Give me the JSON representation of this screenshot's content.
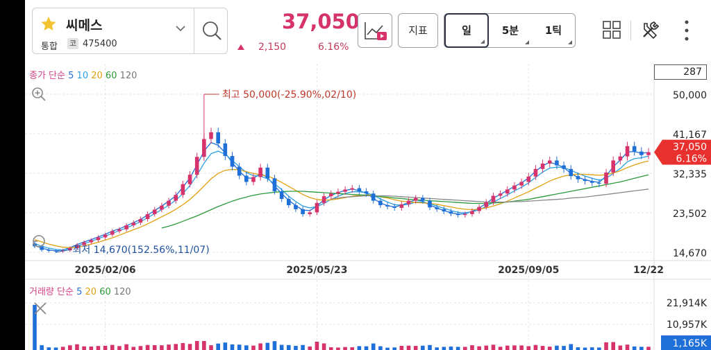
{
  "header": {
    "stock_name": "씨메스",
    "market": "통합",
    "code_badge": "코",
    "code": "475400",
    "price": "37,050",
    "change": "2,150",
    "change_pct": "6.16%",
    "indicator_label": "지표",
    "periods": [
      "일",
      "5분",
      "1틱"
    ],
    "colors": {
      "up": "#d6336c",
      "down": "#1f6fd9",
      "accent": "#2d3142"
    }
  },
  "chart_data": [
    {
      "type": "candlestick",
      "title": "",
      "legend": {
        "title": "종가 단순",
        "ma_periods": [
          "5",
          "10",
          "20",
          "60",
          "120"
        ]
      },
      "y_ticks": [
        "50,000",
        "41,167",
        "32,335",
        "23,502",
        "14,670"
      ],
      "ylim": [
        14670,
        50000
      ],
      "x_ticks": [
        "2025/02/06",
        "2025/05/23",
        "2025/09/05",
        "12/22"
      ],
      "count": "287",
      "current_price": "37,050",
      "current_pct": "6.16%",
      "annotations": {
        "high": "최고 50,000(-25.90%,02/10)",
        "low": "최저 14,670(152.56%,11/07)"
      },
      "close_series": [
        16000,
        15200,
        15000,
        14900,
        15100,
        15600,
        16300,
        16900,
        17400,
        18000,
        18600,
        19400,
        19800,
        20700,
        21300,
        22100,
        23200,
        24200,
        25100,
        26200,
        27500,
        29900,
        32000,
        36000,
        40000,
        41500,
        39000,
        36200,
        33800,
        31800,
        30400,
        31500,
        33600,
        31200,
        28300,
        26600,
        25200,
        24300,
        23200,
        23600,
        25700,
        27200,
        27800,
        28200,
        28700,
        29000,
        28300,
        27800,
        26200,
        25200,
        24900,
        24600,
        25400,
        26200,
        26800,
        26200,
        24700,
        24300,
        23800,
        23300,
        23000,
        23200,
        23900,
        24800,
        25900,
        27300,
        27800,
        28700,
        29600,
        30400,
        31600,
        33300,
        34500,
        35200,
        34100,
        33300,
        31700,
        31000,
        30600,
        30200,
        30000,
        32500,
        35200,
        36100,
        38400,
        37200,
        36400,
        37050
      ],
      "ma_series": [
        {
          "name": "5",
          "values": [
            16200,
            15600,
            15200,
            15000,
            15200,
            15700,
            16400,
            17000,
            17500,
            18100,
            18700,
            19400,
            19900,
            20600,
            21300,
            22000,
            23000,
            24000,
            25000,
            26100,
            27300,
            29200,
            31300,
            34200,
            37300,
            39200,
            38600,
            36900,
            34700,
            32800,
            31300,
            31200,
            32300,
            31400,
            29500,
            27800,
            26300,
            25100,
            24100,
            24000,
            25000,
            26400,
            27400,
            28000,
            28500,
            28800,
            28400,
            27900,
            26700,
            25700,
            25100,
            24800,
            25200,
            25800,
            26400,
            26100,
            25200,
            24600,
            24000,
            23500,
            23200,
            23300,
            23800,
            24600,
            25600,
            26800,
            27600,
            28500,
            29400,
            30200,
            31300,
            32800,
            34000,
            34800,
            34300,
            33600,
            32300,
            31400,
            30900,
            30500,
            30300,
            31700,
            33800,
            35300,
            37100,
            37200,
            36800,
            37000
          ]
        },
        {
          "name": "10",
          "values": [
            16600,
            16000,
            15600,
            15300,
            15200,
            15500,
            16000,
            16600,
            17100,
            17700,
            18300,
            18900,
            19500,
            20100,
            20800,
            21500,
            22400,
            23300,
            24200,
            25200,
            26300,
            27800,
            29600,
            31900,
            34600,
            36700,
            37300,
            36600,
            35200,
            33800,
            32500,
            31800,
            31700,
            31100,
            30000,
            28700,
            27200,
            26000,
            25000,
            24600,
            24900,
            25600,
            26500,
            27200,
            27800,
            28200,
            28200,
            28000,
            27400,
            26600,
            25900,
            25300,
            25200,
            25400,
            25900,
            25900,
            25500,
            25000,
            24500,
            24000,
            23600,
            23500,
            23700,
            24200,
            24900,
            25900,
            26700,
            27500,
            28400,
            29200,
            30200,
            31400,
            32600,
            33500,
            33700,
            33600,
            33000,
            32300,
            31700,
            31200,
            30800,
            31200,
            32300,
            33400,
            34900,
            35600,
            35800,
            36200
          ]
        },
        {
          "name": "20",
          "values": [
            17500,
            17000,
            16500,
            16100,
            15800,
            15700,
            15800,
            16100,
            16500,
            16900,
            17400,
            17900,
            18500,
            19100,
            19700,
            20300,
            21000,
            21800,
            22600,
            23400,
            24300,
            25300,
            26500,
            27900,
            29500,
            31100,
            32300,
            33000,
            33200,
            33100,
            32700,
            32300,
            32000,
            31700,
            31100,
            30300,
            29400,
            28500,
            27600,
            26900,
            26500,
            26300,
            26400,
            26600,
            26900,
            27200,
            27400,
            27500,
            27400,
            27100,
            26800,
            26400,
            26100,
            25900,
            25800,
            25700,
            25600,
            25400,
            25100,
            24800,
            24500,
            24300,
            24200,
            24300,
            24600,
            25000,
            25500,
            26100,
            26800,
            27500,
            28200,
            29000,
            29800,
            30600,
            31200,
            31700,
            32000,
            32100,
            32100,
            32000,
            31900,
            32000,
            32400,
            32900,
            33600,
            34200,
            34700,
            35100
          ]
        },
        {
          "name": "60",
          "values": [
            null,
            null,
            null,
            null,
            null,
            null,
            null,
            null,
            null,
            null,
            null,
            null,
            null,
            null,
            null,
            null,
            null,
            null,
            20100,
            20500,
            21000,
            21600,
            22200,
            22800,
            23500,
            24200,
            24900,
            25500,
            26100,
            26600,
            27000,
            27400,
            27700,
            27900,
            28100,
            28200,
            28300,
            28300,
            28300,
            28200,
            28100,
            28000,
            27900,
            27800,
            27700,
            27600,
            27500,
            27400,
            27300,
            27100,
            27000,
            26800,
            26700,
            26500,
            26400,
            26300,
            26200,
            26100,
            26000,
            25900,
            25800,
            25700,
            25600,
            25600,
            25600,
            25700,
            25800,
            25900,
            26100,
            26300,
            26500,
            26800,
            27100,
            27400,
            27700,
            28000,
            28300,
            28600,
            28900,
            29200,
            29500,
            29800,
            30100,
            30400,
            30800,
            31200,
            31600,
            32000
          ]
        },
        {
          "name": "120",
          "values": [
            null,
            null,
            null,
            null,
            null,
            null,
            null,
            null,
            null,
            null,
            null,
            null,
            null,
            null,
            null,
            null,
            null,
            null,
            null,
            null,
            null,
            null,
            null,
            null,
            null,
            null,
            null,
            null,
            null,
            null,
            null,
            null,
            null,
            null,
            null,
            null,
            null,
            null,
            null,
            null,
            null,
            null,
            26600,
            26800,
            27000,
            27100,
            27200,
            27300,
            27300,
            27300,
            27300,
            27200,
            27100,
            27000,
            26900,
            26800,
            26700,
            26600,
            26500,
            26400,
            26300,
            26200,
            26100,
            26000,
            25900,
            25900,
            25900,
            25900,
            26000,
            26000,
            26100,
            26200,
            26300,
            26400,
            26500,
            26600,
            26800,
            26900,
            27000,
            27200,
            27400,
            27600,
            27800,
            28000,
            28200,
            28400,
            28600,
            28800
          ]
        }
      ]
    },
    {
      "type": "bar",
      "title": "",
      "legend": {
        "title": "거래량 단순",
        "ma_periods": [
          "5",
          "20",
          "60",
          "120"
        ]
      },
      "y_ticks": [
        "21,914K",
        "10,957K",
        "1,165K"
      ],
      "ylim": [
        0,
        21914
      ],
      "current_volume": "1,165K"
    }
  ]
}
